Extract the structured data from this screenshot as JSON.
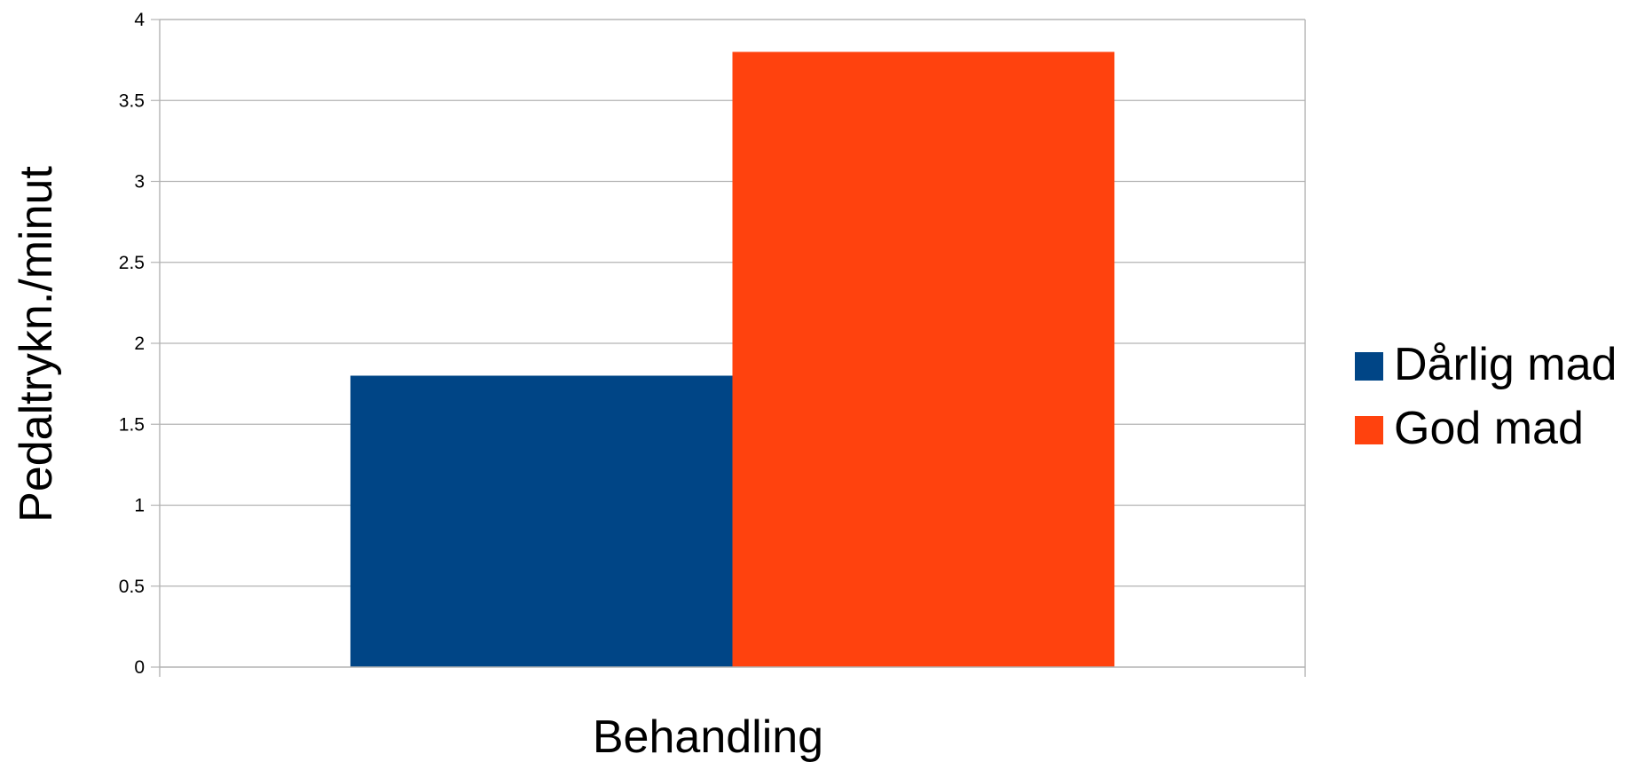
{
  "chart_data": {
    "type": "bar",
    "categories": [
      ""
    ],
    "series": [
      {
        "name": "Dårlig mad",
        "values": [
          1.8
        ],
        "color": "#004586"
      },
      {
        "name": "God mad",
        "values": [
          3.8
        ],
        "color": "#ff420e"
      }
    ],
    "xlabel": "Behandling",
    "ylabel": "Pedaltrykn./minut",
    "ylim": [
      0,
      4
    ],
    "yticks": [
      "0",
      "0.5",
      "1",
      "1.5",
      "2",
      "2.5",
      "3",
      "3.5",
      "4"
    ],
    "grid": true,
    "legend": "right"
  }
}
